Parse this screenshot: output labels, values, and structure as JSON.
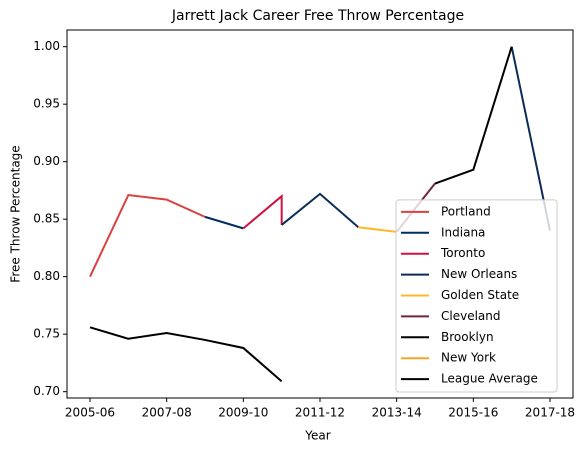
{
  "chart_data": {
    "type": "line",
    "title": "Jarrett Jack Career Free Throw Percentage",
    "xlabel": "Year",
    "ylabel": "Free Throw Percentage",
    "xlim": [
      2004.4,
      2017.6
    ],
    "ylim": [
      0.6945,
      1.0145
    ],
    "xticks": [
      {
        "value": 2005,
        "label": "2005-06"
      },
      {
        "value": 2007,
        "label": "2007-08"
      },
      {
        "value": 2009,
        "label": "2009-10"
      },
      {
        "value": 2011,
        "label": "2011-12"
      },
      {
        "value": 2013,
        "label": "2013-14"
      },
      {
        "value": 2015,
        "label": "2015-16"
      },
      {
        "value": 2017,
        "label": "2017-18"
      }
    ],
    "yticks": [
      {
        "value": 0.7,
        "label": "0.70"
      },
      {
        "value": 0.75,
        "label": "0.75"
      },
      {
        "value": 0.8,
        "label": "0.80"
      },
      {
        "value": 0.85,
        "label": "0.85"
      },
      {
        "value": 0.9,
        "label": "0.90"
      },
      {
        "value": 0.95,
        "label": "0.95"
      },
      {
        "value": 1.0,
        "label": "1.00"
      }
    ],
    "legend": "lower right",
    "series": [
      {
        "name": "Portland",
        "color": "#d9413e",
        "x": [
          2005,
          2006,
          2007,
          2008
        ],
        "values": [
          0.8,
          0.871,
          0.867,
          0.852
        ]
      },
      {
        "name": "Indiana",
        "color": "#002d62",
        "x": [
          2008,
          2009
        ],
        "values": [
          0.852,
          0.842
        ]
      },
      {
        "name": "Toronto",
        "color": "#ce1141",
        "x": [
          2009,
          2010,
          2010
        ],
        "values": [
          0.842,
          0.87,
          0.845
        ]
      },
      {
        "name": "New Orleans",
        "color": "#0c2c56",
        "x": [
          2010,
          2011,
          2012,
          null,
          2016,
          2017
        ],
        "values": [
          0.845,
          0.872,
          0.843,
          null,
          1.0,
          0.84
        ]
      },
      {
        "name": "Golden State",
        "color": "#fdb927",
        "x": [
          2012,
          2013
        ],
        "values": [
          0.843,
          0.839
        ]
      },
      {
        "name": "Cleveland",
        "color": "#6f263d",
        "x": [
          2013,
          2014
        ],
        "values": [
          0.839,
          0.881
        ]
      },
      {
        "name": "Brooklyn",
        "color": "#000000",
        "x": [
          2014,
          2015,
          2016
        ],
        "values": [
          0.881,
          0.893,
          1.0
        ]
      },
      {
        "name": "New York",
        "color": "#f5a623",
        "x": [],
        "values": []
      },
      {
        "name": "League Average",
        "color": "#000000",
        "x": [
          2005,
          2006,
          2007,
          2008,
          2009,
          2010
        ],
        "values": [
          0.756,
          0.746,
          0.751,
          0.745,
          0.738,
          0.709
        ]
      }
    ]
  }
}
